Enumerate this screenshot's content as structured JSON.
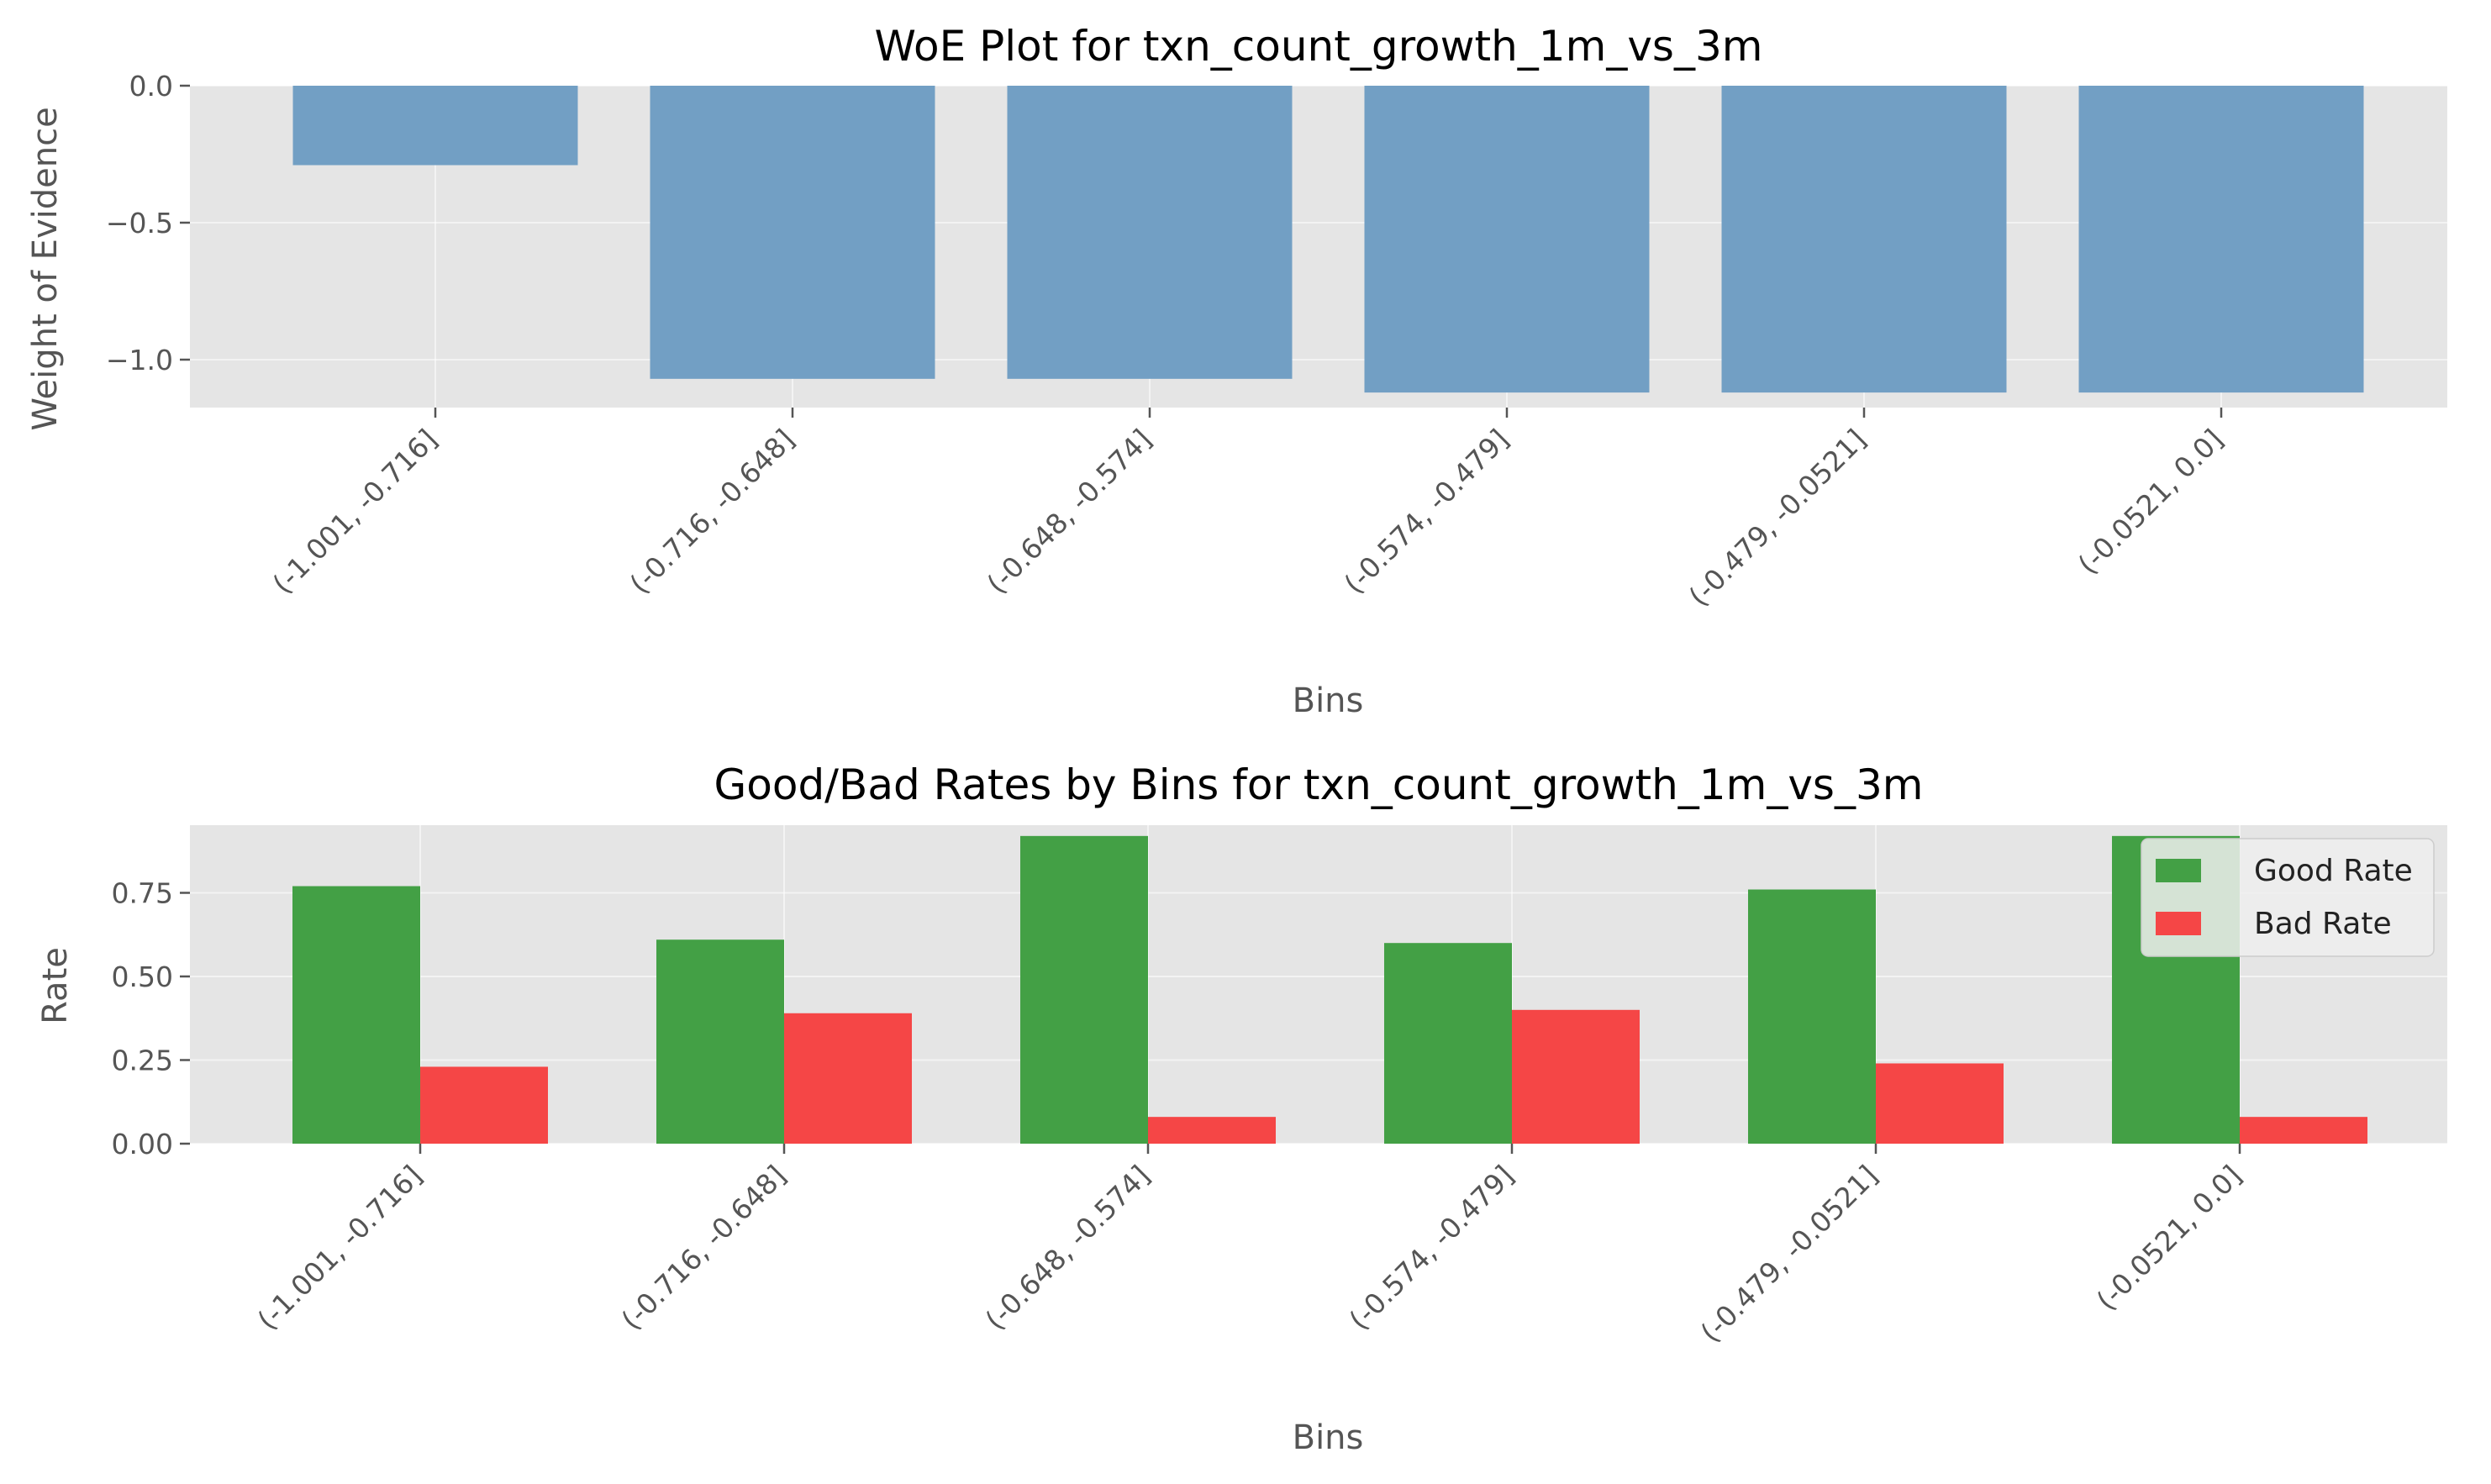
{
  "colors": {
    "background": "#ffffff",
    "axes_face": "#e5e5e5",
    "woe_bar": "#729fc4",
    "good_bar": "#43a045",
    "bad_bar": "#f54646",
    "text_dark": "#000000",
    "text_muted": "#555555"
  },
  "chart_data": [
    {
      "type": "bar",
      "title": "WoE Plot for txn_count_growth_1m_vs_3m",
      "xlabel": "Bins",
      "ylabel": "Weight of Evidence",
      "categories": [
        "(-1.001, -0.716]",
        "(-0.716, -0.648]",
        "(-0.648, -0.574]",
        "(-0.574, -0.479]",
        "(-0.479, -0.0521]",
        "(-0.0521, 0.0]"
      ],
      "values": [
        -0.29,
        -1.07,
        -1.07,
        -1.12,
        -1.12,
        -1.12
      ],
      "yticks": [
        0.0,
        -0.5,
        -1.0
      ],
      "ytick_labels": [
        "0.0",
        "−0.5",
        "−1.0"
      ],
      "ylim": [
        -1.18,
        0.0
      ],
      "grid": true,
      "legend": null
    },
    {
      "type": "bar",
      "title": "Good/Bad Rates by Bins for txn_count_growth_1m_vs_3m",
      "xlabel": "Bins",
      "ylabel": "Rate",
      "categories": [
        "(-1.001, -0.716]",
        "(-0.716, -0.648]",
        "(-0.648, -0.574]",
        "(-0.574, -0.479]",
        "(-0.479, -0.0521]",
        "(-0.0521, 0.0]"
      ],
      "series": [
        {
          "name": "Good Rate",
          "values": [
            0.77,
            0.61,
            0.92,
            0.6,
            0.76,
            0.92
          ]
        },
        {
          "name": "Bad Rate",
          "values": [
            0.23,
            0.39,
            0.08,
            0.4,
            0.24,
            0.08
          ]
        }
      ],
      "yticks": [
        0.0,
        0.25,
        0.5,
        0.75
      ],
      "ytick_labels": [
        "0.00",
        "0.25",
        "0.50",
        "0.75"
      ],
      "ylim": [
        0.0,
        0.965
      ],
      "grid": true,
      "legend": "upper right"
    }
  ]
}
